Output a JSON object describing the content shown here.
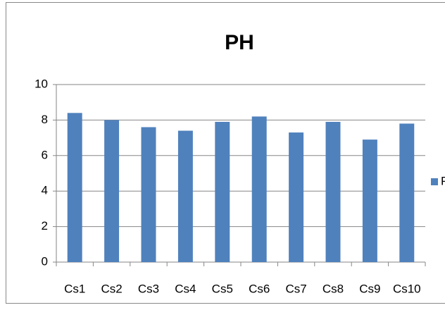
{
  "chart_data": {
    "type": "bar",
    "title": "PH",
    "categories": [
      "Cs1",
      "Cs2",
      "Cs3",
      "Cs4",
      "Cs5",
      "Cs6",
      "Cs7",
      "Cs8",
      "Cs9",
      "Cs10"
    ],
    "series": [
      {
        "name": "PH",
        "color": "#4f81bd",
        "values": [
          8.4,
          8.0,
          7.6,
          7.4,
          7.9,
          8.2,
          7.3,
          7.9,
          6.9,
          7.8
        ]
      }
    ],
    "ylim": [
      0,
      10
    ],
    "yticks": [
      0,
      2,
      4,
      6,
      8,
      10
    ],
    "grid": true,
    "legend": "right"
  }
}
